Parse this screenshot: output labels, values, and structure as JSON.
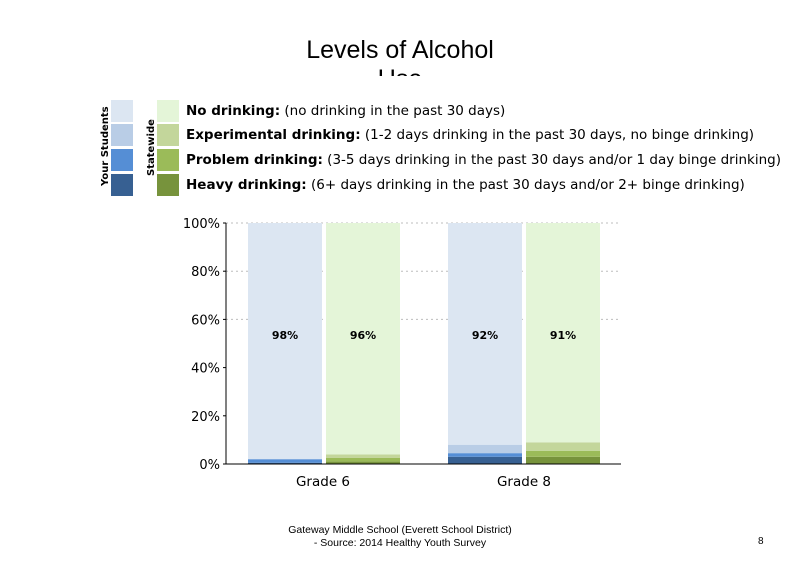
{
  "title_line1": "Levels of Alcohol",
  "title_line2": "Use",
  "legend": {
    "your_students_label": "Your Students",
    "statewide_label": "Statewide",
    "items": [
      {
        "bold": "No drinking:",
        "text": " (no drinking in the past 30 days)",
        "your_color": "#dce6f2",
        "state_color": "#e4f5d8"
      },
      {
        "bold": "Experimental drinking:",
        "text": " (1-2 days drinking in the past 30 days, no binge drinking)",
        "your_color": "#b9cde6",
        "state_color": "#c3d69b"
      },
      {
        "bold": "Problem drinking:",
        "text": " (3-5 days drinking in the past 30 days and/or 1 day binge drinking)",
        "your_color": "#558ed5",
        "state_color": "#9bbb59"
      },
      {
        "bold": "Heavy drinking:",
        "text": " (6+ days drinking in the past 30 days and/or 2+ binge drinking)",
        "your_color": "#376092",
        "state_color": "#77933c"
      }
    ]
  },
  "chart_data": {
    "type": "bar",
    "stacked": true,
    "categories": [
      "Grade 6",
      "Grade 8"
    ],
    "ylim": [
      0,
      100
    ],
    "yticks": [
      "0%",
      "20%",
      "40%",
      "60%",
      "80%",
      "100%"
    ],
    "grid": "dashed at 60%, 80%, 100%",
    "bars": [
      {
        "category": "Grade 6",
        "group": "Your Students",
        "segments": [
          0.5,
          1.5,
          0,
          98
        ],
        "label": "98%"
      },
      {
        "category": "Grade 6",
        "group": "Statewide",
        "segments": [
          1,
          1.5,
          1.5,
          96
        ],
        "label": "96%"
      },
      {
        "category": "Grade 8",
        "group": "Your Students",
        "segments": [
          3,
          1.5,
          3.5,
          92
        ],
        "label": "92%"
      },
      {
        "category": "Grade 8",
        "group": "Statewide",
        "segments": [
          3,
          2.5,
          3.5,
          91
        ],
        "label": "91%"
      }
    ],
    "segment_order": [
      "Heavy drinking",
      "Problem drinking",
      "Experimental drinking",
      "No drinking"
    ],
    "your_colors": [
      "#376092",
      "#558ed5",
      "#b9cde6",
      "#dce6f2"
    ],
    "state_colors": [
      "#77933c",
      "#9bbb59",
      "#c3d69b",
      "#e4f5d8"
    ]
  },
  "footer_line1": "Gateway Middle School (Everett School District)",
  "footer_line2": "- Source: 2014 Healthy Youth Survey",
  "page_number": "8"
}
